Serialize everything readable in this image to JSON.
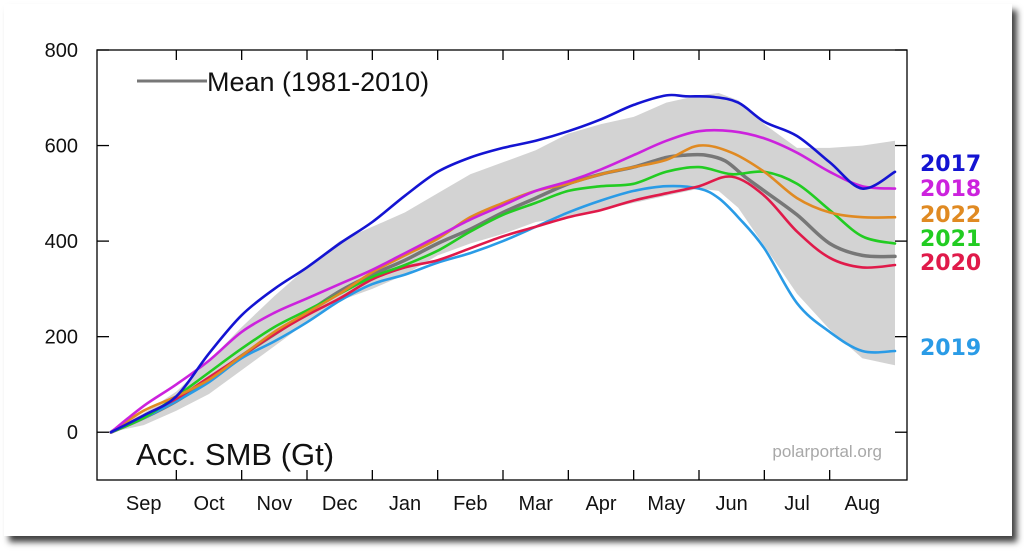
{
  "chart_data": {
    "type": "line",
    "legend": "Mean (1981-2010)",
    "ylabel": "Acc. SMB (Gt)",
    "source": "polarportal.org",
    "ylim": [
      -100,
      800
    ],
    "yticks": [
      0,
      200,
      400,
      600,
      800
    ],
    "xlim": [
      0,
      12
    ],
    "x_unit": "month index (0 = 1 Sep, 12 = 31 Aug)",
    "months": [
      "Sep",
      "Oct",
      "Nov",
      "Dec",
      "Jan",
      "Feb",
      "Mar",
      "Apr",
      "May",
      "Jun",
      "Jul",
      "Aug"
    ],
    "mean_color": "#777777",
    "band_color": "#d3d3d3",
    "band": {
      "x": [
        0,
        0.5,
        1,
        1.5,
        2,
        2.5,
        3,
        3.5,
        4,
        4.5,
        5,
        5.5,
        6,
        6.5,
        7,
        7.5,
        8,
        8.5,
        9,
        9.3,
        9.6,
        10,
        10.5,
        11,
        11.5,
        12
      ],
      "upper": [
        5,
        40,
        85,
        150,
        220,
        285,
        345,
        400,
        430,
        460,
        500,
        540,
        565,
        590,
        625,
        645,
        660,
        690,
        705,
        710,
        695,
        645,
        595,
        595,
        600,
        610
      ],
      "lower": [
        0,
        15,
        45,
        80,
        130,
        180,
        230,
        275,
        300,
        330,
        370,
        395,
        415,
        440,
        450,
        465,
        480,
        495,
        510,
        505,
        470,
        390,
        290,
        215,
        155,
        140
      ]
    },
    "series": [
      {
        "name": "Mean (1981-2010)",
        "color": "#777777",
        "x": [
          0,
          0.5,
          1,
          1.5,
          2,
          2.5,
          3,
          3.5,
          4,
          4.5,
          5,
          5.5,
          6,
          6.5,
          7,
          7.5,
          8,
          8.5,
          8.8,
          9.1,
          9.4,
          9.7,
          10,
          10.5,
          11,
          11.5,
          12
        ],
        "values": [
          0,
          30,
          65,
          110,
          160,
          205,
          250,
          295,
          330,
          360,
          395,
          425,
          460,
          490,
          520,
          540,
          555,
          575,
          580,
          580,
          568,
          535,
          505,
          455,
          395,
          370,
          368
        ]
      },
      {
        "name": "2017",
        "color": "#1414d2",
        "x": [
          0,
          0.5,
          1,
          1.5,
          2,
          2.5,
          3,
          3.5,
          4,
          4.5,
          5,
          5.5,
          6,
          6.5,
          7,
          7.5,
          8,
          8.5,
          8.8,
          9.2,
          9.6,
          10,
          10.5,
          11,
          11.5,
          12
        ],
        "values": [
          0,
          35,
          75,
          165,
          245,
          300,
          345,
          395,
          440,
          495,
          545,
          575,
          595,
          610,
          630,
          655,
          685,
          705,
          703,
          702,
          690,
          650,
          620,
          565,
          510,
          545
        ]
      },
      {
        "name": "2018",
        "color": "#cc22dd",
        "x": [
          0,
          0.5,
          1,
          1.5,
          2,
          2.5,
          3,
          3.5,
          4,
          4.5,
          5,
          5.5,
          6,
          6.5,
          7,
          7.5,
          8,
          8.5,
          9,
          9.5,
          10,
          10.5,
          11,
          11.5,
          12
        ],
        "values": [
          0,
          55,
          100,
          150,
          210,
          250,
          280,
          310,
          340,
          375,
          410,
          445,
          475,
          505,
          525,
          550,
          580,
          610,
          630,
          630,
          615,
          585,
          545,
          515,
          510
        ]
      },
      {
        "name": "2022",
        "color": "#e08a22",
        "x": [
          0,
          0.5,
          1,
          1.5,
          2,
          2.5,
          3,
          3.5,
          4,
          4.5,
          5,
          5.5,
          6,
          6.5,
          7,
          7.5,
          8,
          8.5,
          9,
          9.5,
          10,
          10.5,
          11,
          11.5,
          12
        ],
        "values": [
          0,
          45,
          75,
          110,
          160,
          210,
          250,
          290,
          335,
          370,
          405,
          450,
          480,
          505,
          520,
          540,
          555,
          570,
          600,
          585,
          545,
          490,
          460,
          450,
          450
        ]
      },
      {
        "name": "2021",
        "color": "#22cc22",
        "x": [
          0,
          0.5,
          1,
          1.5,
          2,
          2.5,
          3,
          3.5,
          4,
          4.5,
          5,
          5.5,
          6,
          6.5,
          7,
          7.5,
          8,
          8.5,
          9,
          9.5,
          10,
          10.5,
          11,
          11.5,
          12
        ],
        "values": [
          0,
          30,
          75,
          125,
          175,
          220,
          255,
          290,
          325,
          350,
          380,
          420,
          455,
          480,
          505,
          515,
          520,
          545,
          555,
          540,
          545,
          520,
          465,
          410,
          395
        ]
      },
      {
        "name": "2020",
        "color": "#e01a4a",
        "x": [
          0,
          0.5,
          1,
          1.5,
          2,
          2.5,
          3,
          3.5,
          4,
          4.5,
          5,
          5.5,
          6,
          6.5,
          7,
          7.5,
          8,
          8.5,
          9,
          9.5,
          10,
          10.5,
          11,
          11.5,
          12
        ],
        "values": [
          0,
          35,
          70,
          115,
          160,
          205,
          245,
          280,
          320,
          345,
          360,
          385,
          410,
          430,
          450,
          465,
          485,
          500,
          515,
          535,
          495,
          420,
          365,
          345,
          350
        ]
      },
      {
        "name": "2019",
        "color": "#2a9be6",
        "x": [
          0,
          0.5,
          1,
          1.5,
          2,
          2.5,
          3,
          3.5,
          4,
          4.5,
          5,
          5.5,
          6,
          6.5,
          7,
          7.5,
          8,
          8.5,
          9,
          9.3,
          9.6,
          10,
          10.5,
          11,
          11.5,
          12
        ],
        "values": [
          0,
          30,
          65,
          105,
          155,
          190,
          230,
          275,
          310,
          330,
          355,
          375,
          400,
          430,
          460,
          485,
          505,
          515,
          510,
          490,
          450,
          385,
          270,
          210,
          170,
          170
        ]
      }
    ],
    "year_labels": [
      {
        "text": "2017",
        "color": "#1414d2"
      },
      {
        "text": "2018",
        "color": "#cc22dd"
      },
      {
        "text": "2022",
        "color": "#e08a22"
      },
      {
        "text": "2021",
        "color": "#22cc22"
      },
      {
        "text": "2020",
        "color": "#e01a4a"
      },
      {
        "text": "2019",
        "color": "#2a9be6"
      }
    ]
  }
}
